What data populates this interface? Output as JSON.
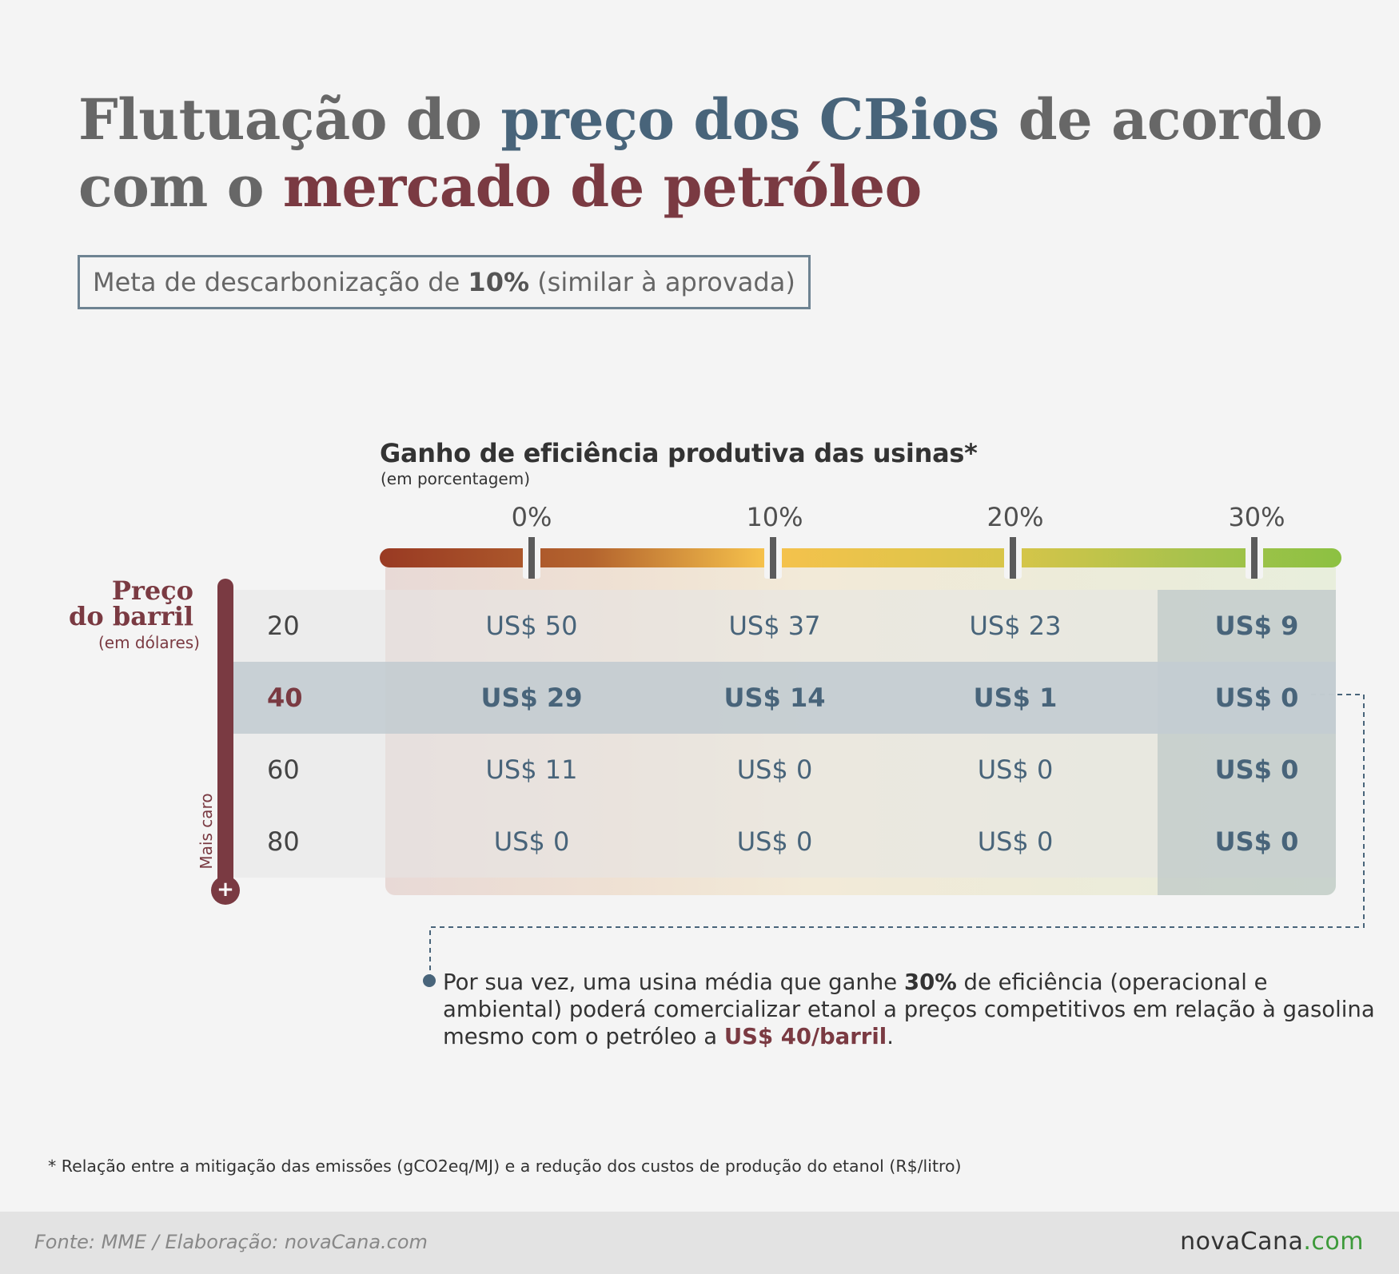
{
  "title": {
    "part1": "Flutuação do ",
    "part2": "preço dos CBios",
    "part3": " de acordo com o ",
    "part4": "mercado de petróleo"
  },
  "subtitle": {
    "pre": "Meta de descarbonização de ",
    "bold": "10%",
    "post": " (similar à aprovada)"
  },
  "chart_data": {
    "type": "table",
    "title": "Flutuação do preço dos CBios de acordo com o mercado de petróleo",
    "column_axis_title": "Ganho de eficiência produtiva das usinas*",
    "column_axis_unit": "(em porcentagem)",
    "columns": [
      "0%",
      "10%",
      "20%",
      "30%"
    ],
    "row_axis_title": "Preço do barril",
    "row_axis_unit": "(em dólares)",
    "row_axis_note": "Mais caro",
    "rows": [
      "20",
      "40",
      "60",
      "80"
    ],
    "highlight_row": 1,
    "highlight_column": 3,
    "values": [
      [
        "US$ 50",
        "US$ 37",
        "US$ 23",
        "US$ 9"
      ],
      [
        "US$ 29",
        "US$ 14",
        "US$ 1",
        "US$ 0"
      ],
      [
        "US$ 11",
        "US$ 0",
        "US$ 0",
        "US$ 0"
      ],
      [
        "US$ 0",
        "US$ 0",
        "US$ 0",
        "US$ 0"
      ]
    ],
    "gradient_colors": [
      "#993a23",
      "#f6c24c",
      "#8cc142"
    ]
  },
  "y_title_line1": "Preço",
  "y_title_line2": "do barril",
  "thermo_cap": "+",
  "annotation": {
    "t1": "Por sua vez, uma usina média que ganhe ",
    "b1": "30%",
    "t2": " de eficiência (operacional e ambiental) poderá comercializar etanol a preços competitivos em relação à gasolina mesmo com o petróleo a ",
    "r1": "US$ 40/barril",
    "t3": "."
  },
  "footnote": "* Relação entre a mitigação das emissões (gCO2eq/MJ) e a redução dos custos de produção do etanol (R$/litro)",
  "source": "Fonte: MME / Elaboração: novaCana.com",
  "logo": {
    "main": "novaCana",
    "suffix": ".com"
  },
  "colors": {
    "blue": "#48647a",
    "red": "#7a3a42",
    "gray": "#676767"
  }
}
